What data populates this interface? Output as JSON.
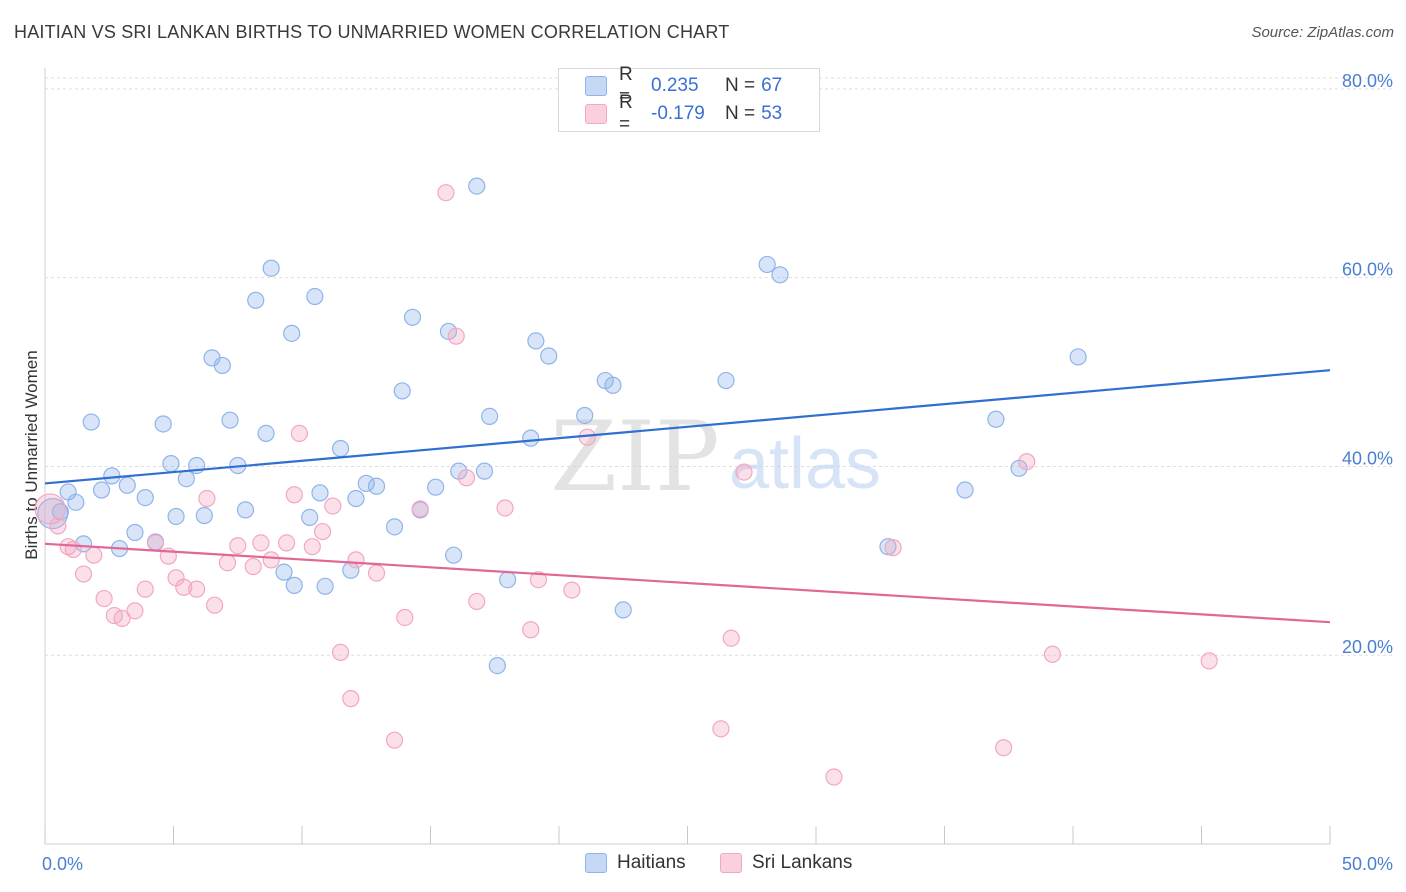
{
  "header": {
    "title": "HAITIAN VS SRI LANKAN BIRTHS TO UNMARRIED WOMEN CORRELATION CHART",
    "source": "Source: ZipAtlas.com"
  },
  "watermark": {
    "zip": "ZIP",
    "atlas": "atlas"
  },
  "legend": {
    "r_label": "R =",
    "n_label": "N =",
    "rows": [
      {
        "r": "0.235",
        "n": "67"
      },
      {
        "r": "-0.179",
        "n": "53"
      }
    ]
  },
  "chart_data": {
    "type": "scatter",
    "title": "HAITIAN VS SRI LANKAN BIRTHS TO UNMARRIED WOMEN CORRELATION CHART",
    "xlabel": "",
    "ylabel": "Births to Unmarried Women",
    "xlim": [
      0,
      50
    ],
    "ylim": [
      0,
      82
    ],
    "x_tick_labels": [
      "0.0%",
      "50.0%"
    ],
    "y_ticks": [
      20,
      40,
      60,
      80
    ],
    "y_tick_labels": [
      "20.0%",
      "40.0%",
      "60.0%",
      "80.0%"
    ],
    "grid": true,
    "legend_position": "top-center",
    "series": [
      {
        "name": "Haitians",
        "color": "#8fb4ea",
        "line_color": "#2f6fd0",
        "trend": [
          [
            0,
            38.2
          ],
          [
            50,
            50.2
          ]
        ],
        "points": [
          [
            0.3,
            35
          ],
          [
            0.6,
            35.2
          ],
          [
            0.9,
            37.3
          ],
          [
            1.2,
            36.2
          ],
          [
            1.5,
            31.8
          ],
          [
            1.8,
            44.7
          ],
          [
            2.2,
            37.5
          ],
          [
            2.6,
            39
          ],
          [
            2.9,
            31.3
          ],
          [
            3.2,
            38
          ],
          [
            3.5,
            33
          ],
          [
            3.9,
            36.7
          ],
          [
            4.3,
            32
          ],
          [
            4.6,
            44.5
          ],
          [
            4.9,
            40.3
          ],
          [
            5.1,
            34.7
          ],
          [
            5.5,
            38.7
          ],
          [
            5.9,
            40.1
          ],
          [
            6.2,
            34.8
          ],
          [
            6.5,
            51.5
          ],
          [
            6.9,
            50.7
          ],
          [
            7.2,
            44.9
          ],
          [
            7.5,
            40.1
          ],
          [
            7.8,
            35.4
          ],
          [
            8.2,
            57.6
          ],
          [
            8.6,
            43.5
          ],
          [
            8.8,
            61
          ],
          [
            9.3,
            28.8
          ],
          [
            9.6,
            54.1
          ],
          [
            9.7,
            27.4
          ],
          [
            10.3,
            34.6
          ],
          [
            10.5,
            58
          ],
          [
            10.7,
            37.2
          ],
          [
            10.9,
            27.3
          ],
          [
            11.5,
            41.9
          ],
          [
            11.9,
            29
          ],
          [
            12.1,
            36.6
          ],
          [
            12.5,
            38.2
          ],
          [
            12.9,
            37.9
          ],
          [
            13.6,
            33.6
          ],
          [
            13.9,
            48
          ],
          [
            14.3,
            55.8
          ],
          [
            14.6,
            35.4
          ],
          [
            15.2,
            37.8
          ],
          [
            15.7,
            54.3
          ],
          [
            15.9,
            30.6
          ],
          [
            16.1,
            39.5
          ],
          [
            16.8,
            69.7
          ],
          [
            17.1,
            39.5
          ],
          [
            17.3,
            45.3
          ],
          [
            17.6,
            18.9
          ],
          [
            18,
            28
          ],
          [
            18.9,
            43
          ],
          [
            19.1,
            53.3
          ],
          [
            19.6,
            51.7
          ],
          [
            21,
            45.4
          ],
          [
            21.8,
            49.1
          ],
          [
            22.1,
            48.6
          ],
          [
            22.5,
            24.8
          ],
          [
            26.5,
            49.1
          ],
          [
            28.1,
            61.4
          ],
          [
            28.6,
            60.3
          ],
          [
            32.8,
            31.5
          ],
          [
            35.8,
            37.5
          ],
          [
            37,
            45
          ],
          [
            37.9,
            39.8
          ],
          [
            40.2,
            51.6
          ]
        ]
      },
      {
        "name": "Sri Lankans",
        "color": "#f3a7c1",
        "line_color": "#e06896",
        "trend": [
          [
            0,
            31.8
          ],
          [
            50,
            23.5
          ]
        ],
        "points": [
          [
            0.2,
            35.5
          ],
          [
            0.5,
            33.7
          ],
          [
            0.9,
            31.5
          ],
          [
            1.1,
            31.2
          ],
          [
            1.5,
            28.6
          ],
          [
            1.9,
            30.6
          ],
          [
            2.3,
            26
          ],
          [
            2.7,
            24.2
          ],
          [
            3,
            23.9
          ],
          [
            3.5,
            24.7
          ],
          [
            3.9,
            27
          ],
          [
            4.3,
            31.9
          ],
          [
            4.8,
            30.5
          ],
          [
            5.1,
            28.2
          ],
          [
            5.4,
            27.2
          ],
          [
            5.9,
            27
          ],
          [
            6.3,
            36.6
          ],
          [
            6.6,
            25.3
          ],
          [
            7.1,
            29.8
          ],
          [
            7.5,
            31.6
          ],
          [
            8.1,
            29.4
          ],
          [
            8.4,
            31.9
          ],
          [
            8.8,
            30.1
          ],
          [
            9.4,
            31.9
          ],
          [
            9.7,
            37
          ],
          [
            9.9,
            43.5
          ],
          [
            10.4,
            31.5
          ],
          [
            10.8,
            33.1
          ],
          [
            11.2,
            35.8
          ],
          [
            11.5,
            20.3
          ],
          [
            11.9,
            15.4
          ],
          [
            12.1,
            30.1
          ],
          [
            12.9,
            28.7
          ],
          [
            13.6,
            11
          ],
          [
            14,
            24
          ],
          [
            14.6,
            35.5
          ],
          [
            15.6,
            69
          ],
          [
            16,
            53.8
          ],
          [
            16.4,
            38.8
          ],
          [
            16.8,
            25.7
          ],
          [
            17.9,
            35.6
          ],
          [
            18.9,
            22.7
          ],
          [
            19.2,
            28
          ],
          [
            20.5,
            26.9
          ],
          [
            21.1,
            43.1
          ],
          [
            26.3,
            12.2
          ],
          [
            26.7,
            21.8
          ],
          [
            27.2,
            39.4
          ],
          [
            30.7,
            7.1
          ],
          [
            33,
            31.4
          ],
          [
            37.3,
            10.2
          ],
          [
            38.2,
            40.5
          ],
          [
            39.2,
            20.1
          ],
          [
            45.3,
            19.4
          ]
        ]
      }
    ]
  }
}
